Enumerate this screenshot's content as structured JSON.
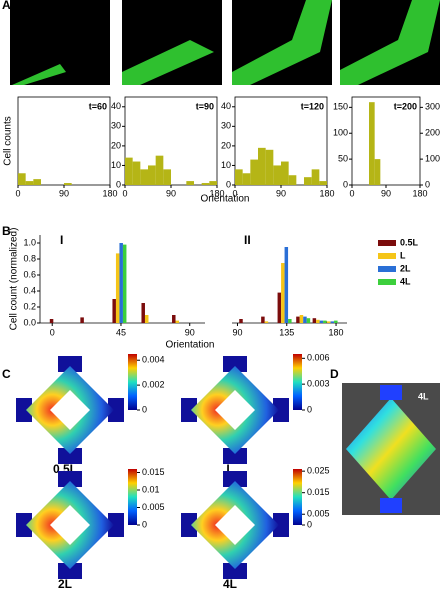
{
  "panel_labels": [
    "A",
    "B",
    "C",
    "D"
  ],
  "chart_data": [
    {
      "type": "histogram",
      "annotation": "t=60",
      "ylabel": "Cell counts",
      "bins": [
        0,
        15,
        30,
        45,
        60,
        75,
        90,
        105,
        120,
        135,
        150,
        165,
        180
      ],
      "values": [
        6,
        2,
        3,
        0,
        0,
        0,
        1,
        0,
        0,
        0,
        0,
        0
      ],
      "color": "#b5b516",
      "xlim": [
        0,
        180
      ],
      "xticks": [
        0,
        90,
        180
      ],
      "ylim": [
        0,
        45
      ]
    },
    {
      "type": "histogram",
      "annotation": "t=90",
      "xlabel": "Orientation",
      "bins": [
        0,
        15,
        30,
        45,
        60,
        75,
        90,
        105,
        120,
        135,
        150,
        165,
        180
      ],
      "values": [
        14,
        12,
        8,
        10,
        15,
        8,
        0,
        0,
        2,
        0,
        1,
        2
      ],
      "color": "#b5b516",
      "xlim": [
        0,
        180
      ],
      "xticks": [
        0,
        90,
        180
      ],
      "ylim": [
        0,
        45
      ],
      "yticks": [
        0,
        10,
        20,
        30,
        40
      ]
    },
    {
      "type": "histogram",
      "annotation": "t=120",
      "bins": [
        0,
        15,
        30,
        45,
        60,
        75,
        90,
        105,
        120,
        135,
        150,
        165,
        180
      ],
      "values": [
        8,
        6,
        13,
        19,
        18,
        10,
        12,
        5,
        0,
        4,
        8,
        2
      ],
      "color": "#b5b516",
      "xlim": [
        0,
        180
      ],
      "xticks": [
        0,
        90,
        180
      ],
      "ylim": [
        0,
        45
      ],
      "yticks": [
        0,
        10,
        20,
        30,
        40
      ]
    },
    {
      "type": "histogram",
      "annotation": "t=200",
      "bins": [
        0,
        15,
        30,
        45,
        60,
        75,
        90,
        105,
        120,
        135,
        150,
        165,
        180
      ],
      "values": [
        0,
        0,
        0,
        160,
        50,
        0,
        0,
        0,
        0,
        0,
        0,
        0
      ],
      "color": "#b5b516",
      "xlim": [
        0,
        180
      ],
      "xticks": [
        0,
        90,
        180
      ],
      "ylim": [
        0,
        170
      ],
      "yticks": [
        0,
        50,
        100,
        150
      ],
      "y2lim": [
        0,
        340
      ],
      "y2ticks": [
        0,
        100,
        200,
        300
      ]
    },
    {
      "type": "bar",
      "title": "I",
      "ylabel": "Cell count (normalized)",
      "xlabel": "Orientation",
      "x": [
        3,
        23,
        44,
        63,
        83
      ],
      "xlim": [
        -8,
        100
      ],
      "xticks": [
        0,
        45,
        90
      ],
      "ylim": [
        0,
        1.1
      ],
      "yticks": [
        {
          "value": 0,
          "label": "0.0"
        },
        0.2,
        0.4,
        0.6,
        0.8,
        {
          "value": 1,
          "label": "1.0"
        }
      ],
      "series": [
        {
          "name": "0.5L",
          "color": "#7b0c0c",
          "values": [
            0.05,
            0.07,
            0.3,
            0.25,
            0.1
          ]
        },
        {
          "name": "L",
          "color": "#f5c518",
          "values": [
            0,
            0,
            0.87,
            0.1,
            0.03
          ]
        },
        {
          "name": "2L",
          "color": "#2a6fd6",
          "values": [
            0,
            0,
            1.0,
            0,
            0
          ]
        },
        {
          "name": "4L",
          "color": "#3ccf3c",
          "values": [
            0,
            0,
            0.98,
            0,
            0
          ]
        }
      ]
    },
    {
      "type": "bar",
      "title": "II",
      "x": [
        98,
        118,
        133,
        150,
        165,
        175
      ],
      "xlim": [
        85,
        190
      ],
      "xticks": [
        90,
        135,
        180
      ],
      "ylim": [
        0,
        1.1
      ],
      "series": [
        {
          "color": "#7b0c0c",
          "values": [
            0.05,
            0.08,
            0.38,
            0.08,
            0.06,
            0.02
          ]
        },
        {
          "color": "#f5c518",
          "values": [
            0,
            0.02,
            0.75,
            0.1,
            0.04,
            0.02
          ]
        },
        {
          "color": "#2a6fd6",
          "values": [
            0,
            0,
            0.95,
            0.08,
            0.03,
            0.02
          ]
        },
        {
          "color": "#3ccf3c",
          "values": [
            0,
            0,
            0.05,
            0.06,
            0.03,
            0.03
          ]
        }
      ]
    }
  ],
  "heatmaps": [
    {
      "label": "0.5L",
      "colorbar_ticks": [
        0,
        0.002,
        0.004
      ],
      "colorbar_max": 0.0045
    },
    {
      "label": "L",
      "colorbar_ticks": [
        0,
        0.003,
        0.006
      ],
      "colorbar_max": 0.0065
    },
    {
      "label": "2L",
      "colorbar_ticks": [
        0,
        0.005,
        0.01,
        0.015
      ],
      "colorbar_max": 0.016
    },
    {
      "label": "4L",
      "colorbar_ticks": [
        0,
        0.005,
        0.015,
        0.025
      ],
      "colorbar_max": 0.026
    }
  ],
  "panel_d_label": "4L"
}
